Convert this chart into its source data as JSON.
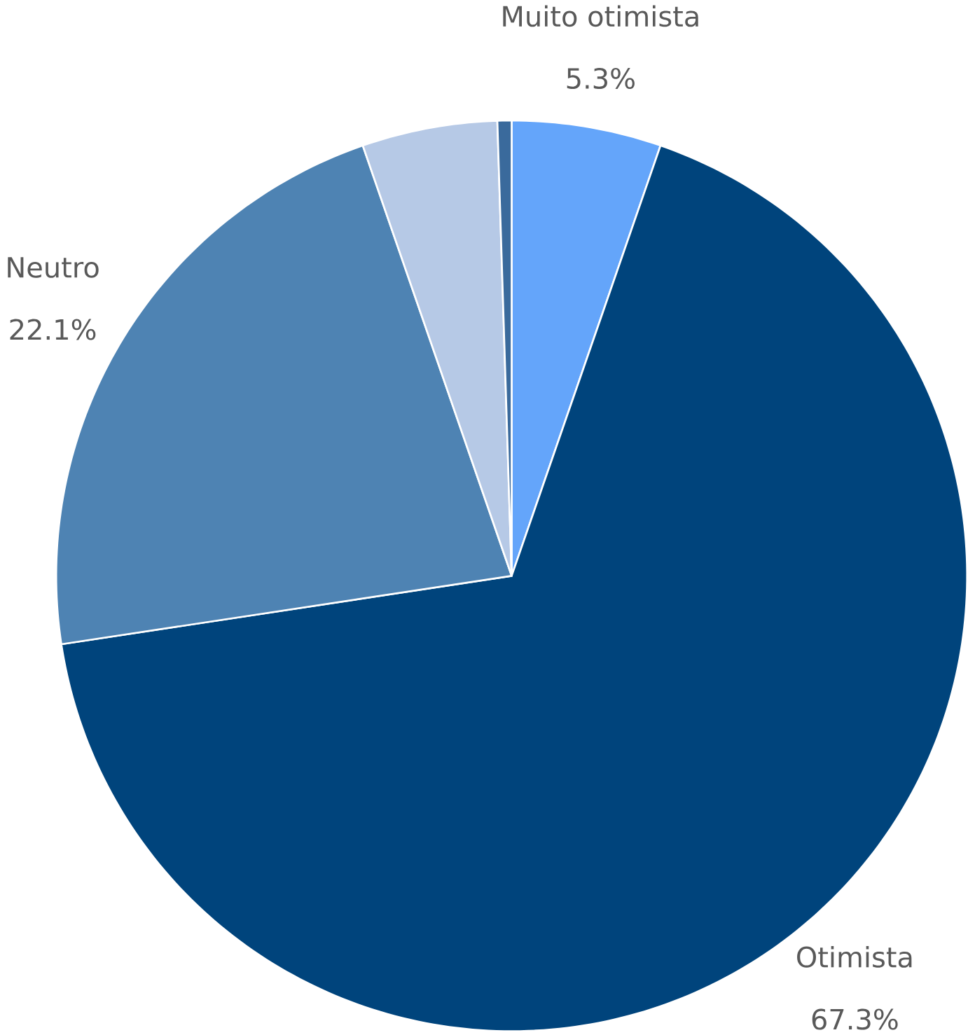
{
  "chart_data": {
    "type": "pie",
    "categories": [
      "Muito otimista",
      "Otimista",
      "Neutro",
      null,
      null
    ],
    "values": [
      5.3,
      67.3,
      22.1,
      4.8,
      0.5
    ],
    "colors": [
      "#64a5fa",
      "#00447c",
      "#4e83b3",
      "#b6c9e6",
      "#3a6a9c"
    ],
    "value_labels": [
      "5.3%",
      "67.3%",
      "22.1%",
      null,
      null
    ]
  }
}
